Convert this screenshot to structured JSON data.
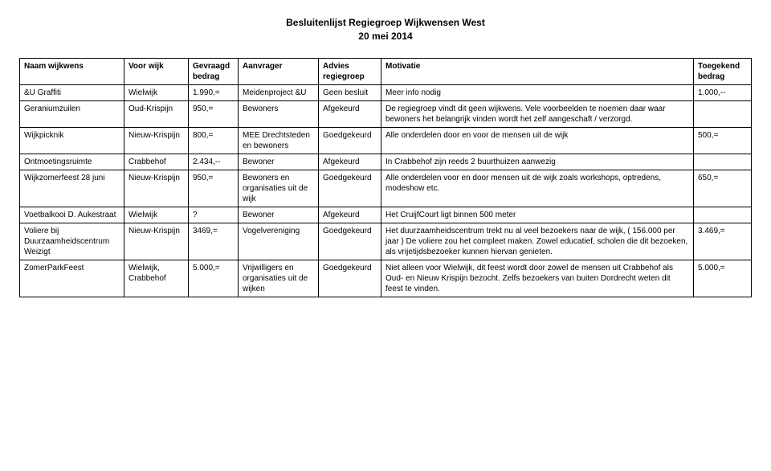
{
  "title_line1": "Besluitenlijst Regiegroep Wijkwensen West",
  "title_line2": "20 mei 2014",
  "headers": {
    "c0": "Naam wijkwens",
    "c1": "Voor wijk",
    "c2": "Gevraagd bedrag",
    "c3": "Aanvrager",
    "c4": "Advies regiegroep",
    "c5": "Motivatie",
    "c6": "Toegekend bedrag"
  },
  "rows": [
    {
      "c0": "&U Graffiti",
      "c1": "Wielwijk",
      "c2": "1.990,=",
      "c3": "Meidenproject &U",
      "c4": "Geen besluit",
      "c5": "Meer info nodig",
      "c6": "1.000,--"
    },
    {
      "c0": "Geraniumzuilen",
      "c1": "Oud-Krispijn",
      "c2": "950,=",
      "c3": "Bewoners",
      "c4": "Afgekeurd",
      "c5": "De regiegroep vindt dit geen wijkwens. Vele voorbeelden te noemen daar waar bewoners het belangrijk vinden wordt het zelf aangeschaft / verzorgd.",
      "c6": ""
    },
    {
      "c0": "Wijkpicknik",
      "c1": "Nieuw-Krispijn",
      "c2": "800,=",
      "c3": "MEE Drechtsteden en bewoners",
      "c4": "Goedgekeurd",
      "c5": "Alle onderdelen door en voor de mensen uit de wijk",
      "c6": "500,="
    },
    {
      "c0": "Ontmoetingsruimte",
      "c1": "Crabbehof",
      "c2": "2.434,--",
      "c3": "Bewoner",
      "c4": "Afgekeurd",
      "c5": "In Crabbehof zijn reeds 2 buurthuizen aanwezig",
      "c6": ""
    },
    {
      "c0": "Wijkzomerfeest 28 juni",
      "c1": "Nieuw-Krispijn",
      "c2": "950,=",
      "c3": "Bewoners en organisaties uit de wijk",
      "c4": "Goedgekeurd",
      "c5": "Alle onderdelen voor en door mensen uit de wijk zoals workshops, optredens, modeshow etc.",
      "c6": "650,="
    },
    {
      "c0": "Voetbalkooi D. Aukestraat",
      "c1": "Wielwijk",
      "c2": "?",
      "c3": "Bewoner",
      "c4": "Afgekeurd",
      "c5": "Het CruijfCourt ligt binnen 500 meter",
      "c6": ""
    },
    {
      "c0": "Voliere bij Duurzaamheidscentrum Weizigt",
      "c1": "Nieuw-Krispijn",
      "c2": "3469,=",
      "c3": "Vogelvereniging",
      "c4": "Goedgekeurd",
      "c5": "Het duurzaamheidscentrum trekt nu al veel bezoekers naar de wijk, ( 156.000 per jaar ) De voliere zou het compleet maken. Zowel educatief, scholen die dit bezoeken, als vrijetijdsbezoeker kunnen hiervan genieten.",
      "c6": "3.469,="
    },
    {
      "c0": "ZomerParkFeest",
      "c1": "Wielwijk, Crabbehof",
      "c2": "5.000,=",
      "c3": "Vrijwilligers en organisaties uit de wijken",
      "c4": "Goedgekeurd",
      "c5": "Niet alleen voor Wielwijk, dit feest wordt door zowel de mensen uit Crabbehof als Oud- en Nieuw Krispijn bezocht. Zelfs bezoekers van buiten Dordrecht weten dit feest te vinden.",
      "c6": "5.000,="
    }
  ]
}
